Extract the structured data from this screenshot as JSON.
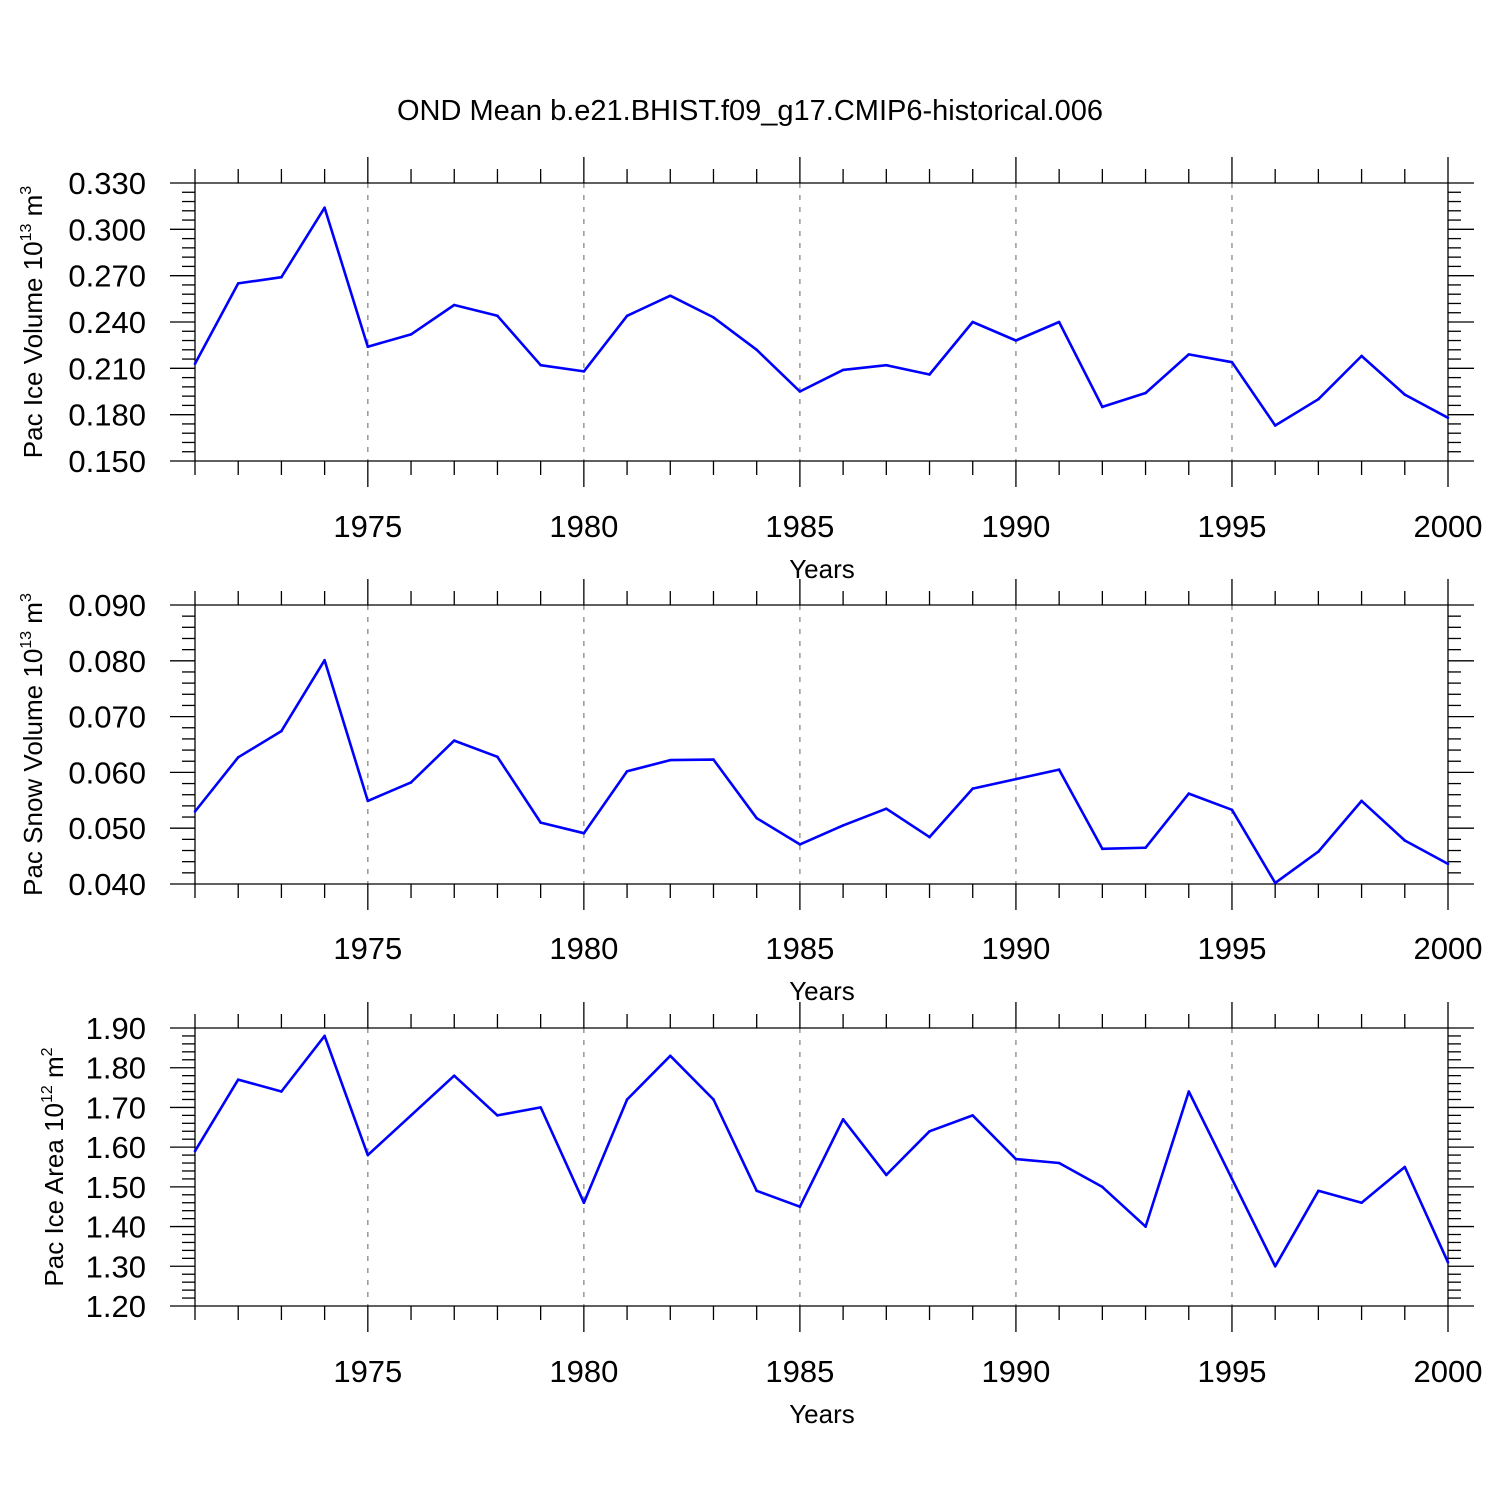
{
  "title": "OND Mean b.e21.BHIST.f09_g17.CMIP6-historical.006",
  "colors": {
    "series": "#0000ff",
    "axis": "#000000",
    "grid": "#888888"
  },
  "chart_data": [
    {
      "type": "line",
      "ylabel": "Pac Ice Volume 10",
      "ylabel_exp": "13",
      "ylabel_unit": " m",
      "ylabel_unit_exp": "3",
      "xlabel": "Years",
      "xlim": [
        1971,
        2000
      ],
      "ylim": [
        0.15,
        0.33
      ],
      "yticks": [
        "0.150",
        "0.180",
        "0.210",
        "0.240",
        "0.270",
        "0.300",
        "0.330"
      ],
      "xticks": [
        "1975",
        "1980",
        "1985",
        "1990",
        "1995",
        "2000"
      ],
      "grid": "vertical dashed at major x ticks",
      "x": [
        1971,
        1972,
        1973,
        1974,
        1975,
        1976,
        1977,
        1978,
        1979,
        1980,
        1981,
        1982,
        1983,
        1984,
        1985,
        1986,
        1987,
        1988,
        1989,
        1990,
        1991,
        1992,
        1993,
        1994,
        1995,
        1996,
        1997,
        1998,
        1999,
        2000
      ],
      "values": [
        0.213,
        0.265,
        0.269,
        0.314,
        0.224,
        0.232,
        0.251,
        0.244,
        0.212,
        0.208,
        0.244,
        0.257,
        0.243,
        0.222,
        0.195,
        0.209,
        0.212,
        0.206,
        0.24,
        0.228,
        0.24,
        0.185,
        0.194,
        0.219,
        0.214,
        0.173,
        0.19,
        0.218,
        0.193,
        0.178
      ]
    },
    {
      "type": "line",
      "ylabel": "Pac Snow Volume 10",
      "ylabel_exp": "13",
      "ylabel_unit": " m",
      "ylabel_unit_exp": "3",
      "xlabel": "Years",
      "xlim": [
        1971,
        2000
      ],
      "ylim": [
        0.04,
        0.09
      ],
      "yticks": [
        "0.040",
        "0.050",
        "0.060",
        "0.070",
        "0.080",
        "0.090"
      ],
      "xticks": [
        "1975",
        "1980",
        "1985",
        "1990",
        "1995",
        "2000"
      ],
      "grid": "vertical dashed at major x ticks",
      "x": [
        1971,
        1972,
        1973,
        1974,
        1975,
        1976,
        1977,
        1978,
        1979,
        1980,
        1981,
        1982,
        1983,
        1984,
        1985,
        1986,
        1987,
        1988,
        1989,
        1990,
        1991,
        1992,
        1993,
        1994,
        1995,
        1996,
        1997,
        1998,
        1999,
        2000
      ],
      "values": [
        0.053,
        0.0627,
        0.0674,
        0.0801,
        0.0549,
        0.0582,
        0.0657,
        0.0628,
        0.051,
        0.0491,
        0.0602,
        0.0622,
        0.0623,
        0.0518,
        0.0471,
        0.0505,
        0.0535,
        0.0484,
        0.0571,
        0.0588,
        0.0605,
        0.0463,
        0.0465,
        0.0562,
        0.0533,
        0.0402,
        0.0458,
        0.0549,
        0.0478,
        0.0436
      ]
    },
    {
      "type": "line",
      "ylabel": "Pac Ice Area 10",
      "ylabel_exp": "12",
      "ylabel_unit": " m",
      "ylabel_unit_exp": "2",
      "xlabel": "Years",
      "xlim": [
        1971,
        2000
      ],
      "ylim": [
        1.2,
        1.9
      ],
      "yticks": [
        "1.20",
        "1.30",
        "1.40",
        "1.50",
        "1.60",
        "1.70",
        "1.80",
        "1.90"
      ],
      "xticks": [
        "1975",
        "1980",
        "1985",
        "1990",
        "1995",
        "2000"
      ],
      "grid": "vertical dashed at major x ticks",
      "x": [
        1971,
        1972,
        1973,
        1974,
        1975,
        1976,
        1977,
        1978,
        1979,
        1980,
        1981,
        1982,
        1983,
        1984,
        1985,
        1986,
        1987,
        1988,
        1989,
        1990,
        1991,
        1992,
        1993,
        1994,
        1995,
        1996,
        1997,
        1998,
        1999,
        2000
      ],
      "values": [
        1.59,
        1.77,
        1.74,
        1.88,
        1.58,
        1.68,
        1.78,
        1.68,
        1.7,
        1.46,
        1.72,
        1.83,
        1.72,
        1.49,
        1.45,
        1.67,
        1.53,
        1.64,
        1.68,
        1.57,
        1.56,
        1.5,
        1.4,
        1.74,
        1.52,
        1.3,
        1.49,
        1.46,
        1.55,
        1.31
      ]
    }
  ]
}
